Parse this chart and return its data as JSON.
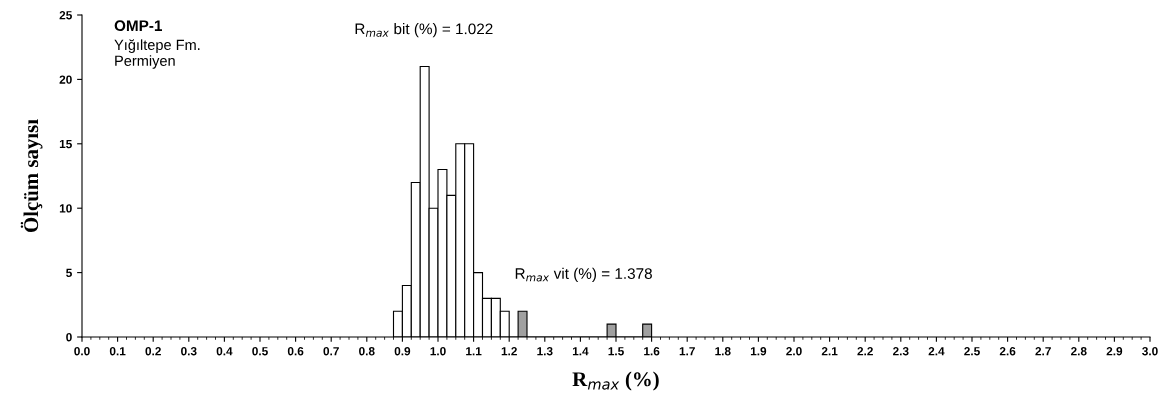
{
  "chart_data": {
    "type": "histogram",
    "xlabel": "R$_{max}$ (%)",
    "ylabel": "Ölçüm sayısı",
    "annotations": [
      "OMP-1",
      "Yığıltepe Fm.",
      "Permiyen",
      "R$_{max}$ bit (%) = 1.022",
      "R$_{max}$ vit (%) = 1.378"
    ],
    "bins": [
      0.875,
      0.9,
      0.925,
      0.95,
      0.975,
      1.0,
      1.025,
      1.05,
      1.075,
      1.1,
      1.125,
      1.15,
      1.175,
      1.2,
      1.225,
      1.25,
      1.275,
      1.3,
      1.325,
      1.35,
      1.375,
      1.4,
      1.425,
      1.45,
      1.475,
      1.5,
      1.525,
      1.55,
      1.575,
      1.6
    ],
    "values": [
      2,
      4,
      12,
      21,
      10,
      13,
      11,
      15,
      15,
      5,
      3,
      3,
      2,
      0,
      2,
      0,
      0,
      0,
      0,
      0,
      0,
      0,
      0,
      0,
      1,
      0,
      0,
      0,
      1
    ],
    "colors": [
      "#ffffff",
      "#ffffff",
      "#ffffff",
      "#ffffff",
      "#ffffff",
      "#ffffff",
      "#ffffff",
      "#ffffff",
      "#ffffff",
      "#ffffff",
      "#ffffff",
      "#ffffff",
      "#ffffff",
      "#ffffff",
      "#a0a0a0",
      "#a0a0a0",
      "#a0a0a0",
      "#a0a0a0",
      "#a0a0a0",
      "#a0a0a0",
      "#a0a0a0",
      "#a0a0a0",
      "#a0a0a0",
      "#a0a0a0",
      "#a0a0a0",
      "#a0a0a0",
      "#a0a0a0",
      "#a0a0a0",
      "#a0a0a0"
    ],
    "xlim": [
      0,
      3.0
    ],
    "ylim": [
      0,
      25
    ],
    "xticks": [
      {
        "value": 0,
        "label": "0.0"
      },
      0.1,
      0.2,
      0.3,
      0.4,
      0.5,
      0.6,
      0.7,
      0.8,
      0.9,
      {
        "value": 1.0,
        "label": "1.0"
      },
      1.1,
      1.2,
      1.3,
      1.4,
      1.5,
      1.6,
      1.7,
      1.8,
      1.9,
      {
        "value": 2.0,
        "label": "2.0"
      },
      2.1,
      2.2,
      2.3,
      2.4,
      2.5,
      2.6,
      2.7,
      2.8,
      2.9,
      {
        "value": 3.0,
        "label": "3.0"
      }
    ],
    "yticks": [
      0,
      5,
      10,
      15,
      20,
      25
    ],
    "grid": false
  }
}
